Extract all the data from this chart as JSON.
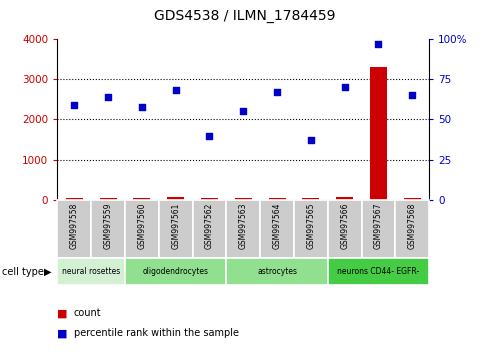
{
  "title": "GDS4538 / ILMN_1784459",
  "samples": [
    "GSM997558",
    "GSM997559",
    "GSM997560",
    "GSM997561",
    "GSM997562",
    "GSM997563",
    "GSM997564",
    "GSM997565",
    "GSM997566",
    "GSM997567",
    "GSM997568"
  ],
  "count_values": [
    50,
    60,
    55,
    65,
    50,
    55,
    60,
    55,
    65,
    3300,
    55
  ],
  "percentile_values": [
    59,
    64,
    58,
    68,
    40,
    55,
    67,
    37,
    70,
    97,
    65
  ],
  "cell_types": [
    {
      "label": "neural rosettes",
      "start": 0,
      "end": 2,
      "color": "#d4f0d4"
    },
    {
      "label": "oligodendrocytes",
      "start": 2,
      "end": 5,
      "color": "#90e090"
    },
    {
      "label": "astrocytes",
      "start": 5,
      "end": 8,
      "color": "#90e090"
    },
    {
      "label": "neurons CD44- EGFR-",
      "start": 8,
      "end": 11,
      "color": "#44cc44"
    }
  ],
  "left_ylim": [
    0,
    4000
  ],
  "right_ylim": [
    0,
    100
  ],
  "left_yticks": [
    0,
    1000,
    2000,
    3000,
    4000
  ],
  "right_yticks": [
    0,
    25,
    50,
    75,
    100
  ],
  "left_yticklabels": [
    "0",
    "1000",
    "2000",
    "3000",
    "4000"
  ],
  "right_yticklabels": [
    "0",
    "25",
    "50",
    "75",
    "100%"
  ],
  "left_color": "#cc0000",
  "right_color": "#0000cc",
  "bar_color": "#cc0000",
  "dot_color": "#0000cc",
  "highlight_bar": 9,
  "grid_yticks": [
    1000,
    2000,
    3000
  ],
  "bar_width": 0.5
}
